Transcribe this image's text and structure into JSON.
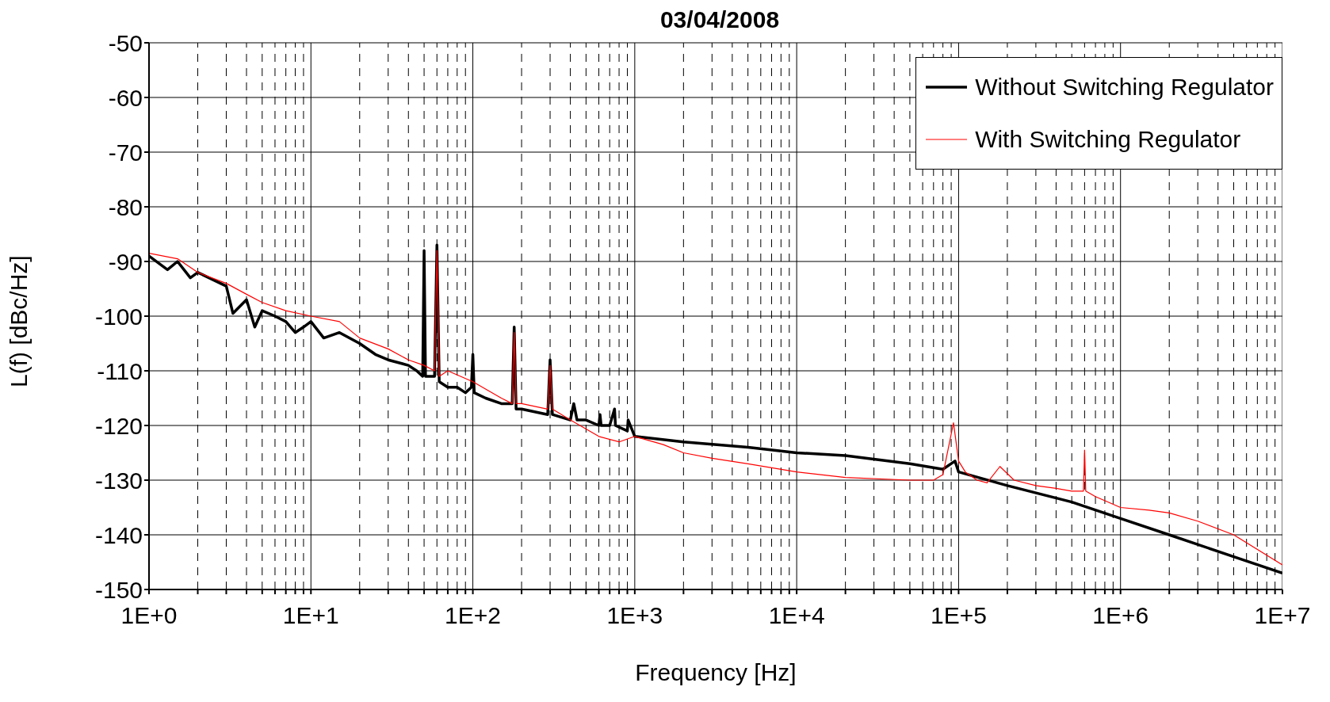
{
  "chart_data": {
    "type": "line",
    "title": "03/04/2008",
    "xlabel": "Frequency [Hz]",
    "ylabel": "L(f) [dBc/Hz]",
    "log": "x",
    "grid": true,
    "legend": "top right",
    "marker": "none",
    "line_style": "solid",
    "xlim": [
      1,
      10000000
    ],
    "ylim": [
      -150,
      -50
    ],
    "yticks": [
      -150,
      -140,
      -130,
      -120,
      -110,
      -100,
      -90,
      -80,
      -70,
      -60,
      -50
    ],
    "xticks": [
      {
        "value": 1,
        "label": "1E+0"
      },
      {
        "value": 2,
        "label": null
      },
      {
        "value": 3,
        "label": null
      },
      {
        "value": 4,
        "label": null
      },
      {
        "value": 5,
        "label": null
      },
      {
        "value": 6,
        "label": null
      },
      {
        "value": 7,
        "label": null
      },
      {
        "value": 8,
        "label": null
      },
      {
        "value": 9,
        "label": null
      },
      {
        "value": 10,
        "label": "1E+1"
      },
      {
        "value": 20,
        "label": null
      },
      {
        "value": 30,
        "label": null
      },
      {
        "value": 40,
        "label": null
      },
      {
        "value": 50,
        "label": null
      },
      {
        "value": 60,
        "label": null
      },
      {
        "value": 70,
        "label": null
      },
      {
        "value": 80,
        "label": null
      },
      {
        "value": 90,
        "label": null
      },
      {
        "value": 100,
        "label": "1E+2"
      },
      {
        "value": 200,
        "label": null
      },
      {
        "value": 300,
        "label": null
      },
      {
        "value": 400,
        "label": null
      },
      {
        "value": 500,
        "label": null
      },
      {
        "value": 600,
        "label": null
      },
      {
        "value": 700,
        "label": null
      },
      {
        "value": 800,
        "label": null
      },
      {
        "value": 900,
        "label": null
      },
      {
        "value": 1000,
        "label": "1E+3"
      },
      {
        "value": 2000,
        "label": null
      },
      {
        "value": 3000,
        "label": null
      },
      {
        "value": 4000,
        "label": null
      },
      {
        "value": 5000,
        "label": null
      },
      {
        "value": 6000,
        "label": null
      },
      {
        "value": 7000,
        "label": null
      },
      {
        "value": 8000,
        "label": null
      },
      {
        "value": 9000,
        "label": null
      },
      {
        "value": 10000,
        "label": "1E+4"
      },
      {
        "value": 20000,
        "label": null
      },
      {
        "value": 30000,
        "label": null
      },
      {
        "value": 40000,
        "label": null
      },
      {
        "value": 50000,
        "label": null
      },
      {
        "value": 60000,
        "label": null
      },
      {
        "value": 70000,
        "label": null
      },
      {
        "value": 80000,
        "label": null
      },
      {
        "value": 90000,
        "label": null
      },
      {
        "value": 100000,
        "label": "1E+5"
      },
      {
        "value": 200000,
        "label": null
      },
      {
        "value": 300000,
        "label": null
      },
      {
        "value": 400000,
        "label": null
      },
      {
        "value": 500000,
        "label": null
      },
      {
        "value": 600000,
        "label": null
      },
      {
        "value": 700000,
        "label": null
      },
      {
        "value": 800000,
        "label": null
      },
      {
        "value": 900000,
        "label": null
      },
      {
        "value": 1000000,
        "label": "1E+6"
      },
      {
        "value": 2000000,
        "label": null
      },
      {
        "value": 3000000,
        "label": null
      },
      {
        "value": 4000000,
        "label": null
      },
      {
        "value": 5000000,
        "label": null
      },
      {
        "value": 6000000,
        "label": null
      },
      {
        "value": 7000000,
        "label": null
      },
      {
        "value": 8000000,
        "label": null
      },
      {
        "value": 9000000,
        "label": null
      },
      {
        "value": 10000000,
        "label": "1E+7"
      }
    ],
    "series": [
      {
        "name": "Without Switching Regulator",
        "color": "#000000",
        "x": [
          1,
          1.3,
          1.5,
          1.8,
          2,
          3,
          3.3,
          4,
          4.5,
          5,
          6,
          7,
          8,
          9,
          10,
          12,
          15,
          20,
          25,
          30,
          40,
          45,
          49,
          50,
          51,
          58,
          60,
          62,
          70,
          80,
          90,
          98,
          100,
          102,
          120,
          150,
          175,
          180,
          185,
          200,
          290,
          300,
          310,
          400,
          420,
          440,
          500,
          600,
          610,
          620,
          700,
          750,
          760,
          900,
          910,
          1000,
          2000,
          5000,
          10000,
          20000,
          50000,
          80000,
          95000,
          100000,
          200000,
          500000,
          1000000,
          2000000,
          5000000,
          10000000
        ],
        "values": [
          -89,
          -91.5,
          -90,
          -93,
          -92,
          -94.5,
          -99.5,
          -97,
          -102,
          -99,
          -100,
          -101,
          -103,
          -102,
          -101,
          -104,
          -103,
          -105,
          -107,
          -108,
          -109,
          -110,
          -111,
          -88,
          -111,
          -111,
          -87,
          -112,
          -113,
          -113,
          -114,
          -113,
          -107,
          -114,
          -115,
          -116,
          -116,
          -102,
          -117,
          -117,
          -118,
          -108,
          -118,
          -119,
          -116,
          -119,
          -119,
          -120,
          -118,
          -120,
          -120,
          -117,
          -120,
          -121,
          -119,
          -122,
          -123,
          -124,
          -125,
          -125.5,
          -127,
          -128,
          -126.5,
          -128.5,
          -131,
          -134,
          -137,
          -140,
          -144,
          -147
        ]
      },
      {
        "name": "With Switching Regulator",
        "color": "#ff0000",
        "x": [
          1,
          1.5,
          2,
          3,
          4,
          5,
          7,
          10,
          15,
          20,
          30,
          40,
          50,
          58,
          60,
          62,
          70,
          100,
          150,
          175,
          180,
          185,
          200,
          290,
          300,
          310,
          400,
          600,
          800,
          1000,
          1500,
          2000,
          3000,
          5000,
          10000,
          20000,
          50000,
          70000,
          80000,
          93000,
          100000,
          110000,
          130000,
          150000,
          180000,
          220000,
          300000,
          400000,
          500000,
          590000,
          600000,
          610000,
          700000,
          1000000,
          1500000,
          2000000,
          3000000,
          5000000,
          10000000
        ],
        "values": [
          -88.5,
          -89.5,
          -92,
          -94,
          -96,
          -97.5,
          -99,
          -100,
          -101,
          -104,
          -106,
          -108,
          -109,
          -110,
          -88,
          -111,
          -110,
          -112,
          -115,
          -116,
          -103,
          -116,
          -116,
          -117,
          -109,
          -117,
          -119,
          -122,
          -123,
          -122,
          -123.5,
          -125,
          -126,
          -127,
          -128.5,
          -129.5,
          -130,
          -130,
          -129,
          -119.5,
          -126.5,
          -128.5,
          -130,
          -130.5,
          -127.5,
          -130,
          -131,
          -131.5,
          -132,
          -132,
          -124.5,
          -132,
          -133,
          -135,
          -135.5,
          -136,
          -137.5,
          -140,
          -145.5
        ]
      }
    ]
  }
}
